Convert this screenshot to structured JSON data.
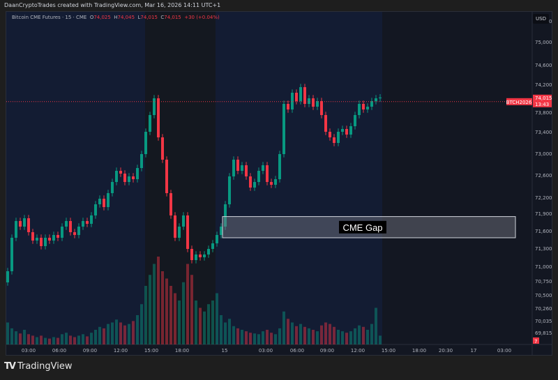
{
  "credit": "DaanCryptoTrades created with TradingView.com, Mar 16, 2026 14:11 UTC+1",
  "legend": {
    "symbol": "Bitcoin CME Futures · 15 · CME",
    "open_label": "O",
    "open": "74,025",
    "high_label": "H",
    "high": "74,045",
    "low_label": "L",
    "low": "74,015",
    "close_label": "C",
    "close": "74,015",
    "change": "+30 (+0.04%)"
  },
  "currency_button": "USD",
  "price_axis": {
    "ticks": [
      "75,250",
      "75,000",
      "74,600",
      "74,200",
      "73,800",
      "73,400",
      "73,000",
      "72,600",
      "72,200",
      "71,900",
      "71,600",
      "71,300",
      "71,000",
      "70,750",
      "70,500",
      "70,260",
      "70,035",
      "69,815"
    ],
    "last_price": "74,015",
    "countdown": "13:43",
    "symbol_tag": "BTCH2026",
    "volume_badge": "7"
  },
  "time_axis": [
    "03:00",
    "06:00",
    "09:00",
    "12:00",
    "15:00",
    "18:00",
    "15",
    "03:00",
    "06:00",
    "09:00",
    "12:00",
    "15:00",
    "18:00",
    "20:30",
    "17",
    "03:00"
  ],
  "annotation": {
    "label": "CME Gap",
    "top_price": 71880,
    "bottom_price": 71500
  },
  "colors": {
    "up": "#089981",
    "down": "#f23645",
    "background": "#131722",
    "session_band": "#131c33"
  },
  "chart_data": {
    "type": "candlestick",
    "start_price": 70700,
    "last_price": 74015,
    "closes": [
      70900,
      71500,
      71800,
      71700,
      71850,
      71600,
      71450,
      71500,
      71350,
      71500,
      71450,
      71550,
      71500,
      71700,
      71800,
      71600,
      71550,
      71700,
      71800,
      71750,
      71900,
      72100,
      72200,
      72050,
      72300,
      72500,
      72700,
      72650,
      72500,
      72600,
      72550,
      72750,
      73000,
      73400,
      73700,
      74000,
      73300,
      72900,
      72300,
      71900,
      71500,
      71700,
      71900,
      71300,
      71100,
      71200,
      71150,
      71200,
      71300,
      71400,
      71550,
      71700,
      72100,
      72600,
      72900,
      72700,
      72800,
      72600,
      72400,
      72500,
      72700,
      72800,
      72500,
      72450,
      72550,
      73000,
      73900,
      73800,
      74100,
      73950,
      74200,
      73900,
      74000,
      73850,
      73950,
      73700,
      73400,
      73300,
      73200,
      73400,
      73450,
      73350,
      73500,
      73700,
      73900,
      73800,
      73850,
      73950,
      74000,
      74015
    ],
    "volumes": [
      30,
      22,
      18,
      15,
      20,
      14,
      12,
      10,
      12,
      9,
      8,
      10,
      9,
      14,
      16,
      12,
      10,
      12,
      14,
      11,
      16,
      20,
      24,
      22,
      28,
      30,
      34,
      30,
      26,
      28,
      32,
      40,
      55,
      80,
      95,
      110,
      120,
      100,
      90,
      80,
      70,
      60,
      85,
      110,
      95,
      60,
      50,
      45,
      55,
      60,
      70,
      40,
      30,
      35,
      25,
      22,
      20,
      18,
      16,
      15,
      14,
      18,
      20,
      16,
      14,
      22,
      45,
      35,
      30,
      25,
      28,
      24,
      22,
      20,
      18,
      26,
      30,
      28,
      24,
      20,
      18,
      16,
      18,
      22,
      26,
      24,
      20,
      28,
      50,
      12
    ]
  },
  "brand": "TradingView"
}
